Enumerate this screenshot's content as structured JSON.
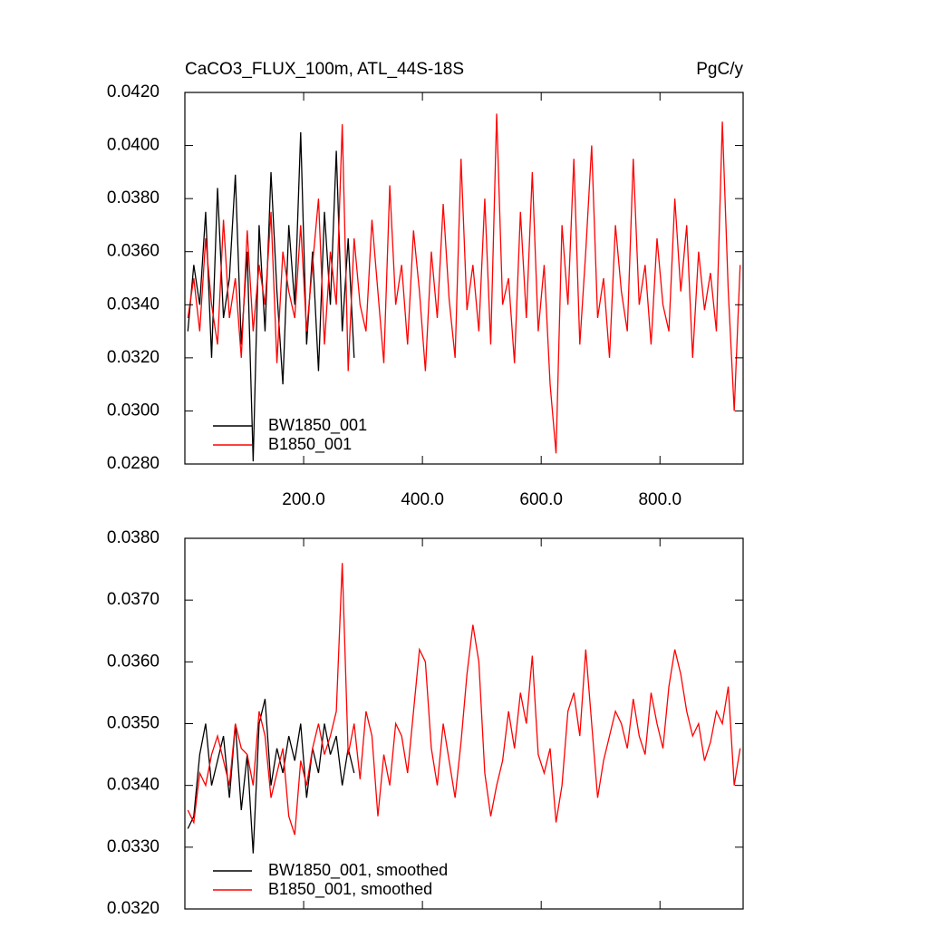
{
  "chart_data": [
    {
      "type": "line",
      "title": "CaCO3_FLUX_100m, ATL_44S-18S",
      "units": "PgC/y",
      "x": [
        5,
        15,
        25,
        35,
        45,
        55,
        65,
        75,
        85,
        95,
        105,
        115,
        125,
        135,
        145,
        155,
        165,
        175,
        185,
        195,
        205,
        215,
        225,
        235,
        245,
        255,
        265,
        275,
        285,
        295,
        305,
        315,
        325,
        335,
        345,
        355,
        365,
        375,
        385,
        395,
        405,
        415,
        425,
        435,
        445,
        455,
        465,
        475,
        485,
        495,
        505,
        515,
        525,
        535,
        545,
        555,
        565,
        575,
        585,
        595,
        605,
        615,
        625,
        635,
        645,
        655,
        665,
        675,
        685,
        695,
        705,
        715,
        725,
        735,
        745,
        755,
        765,
        775,
        785,
        795,
        805,
        815,
        825,
        835,
        845,
        855,
        865,
        875,
        885,
        895,
        905,
        915,
        925,
        935
      ],
      "series": [
        {
          "name": "BW1850_001",
          "color": "#000000",
          "values": [
            0.033,
            0.0355,
            0.034,
            0.0375,
            0.032,
            0.0384,
            0.0335,
            0.035,
            0.0389,
            0.0325,
            0.036,
            0.0281,
            0.037,
            0.033,
            0.039,
            0.0345,
            0.031,
            0.037,
            0.034,
            0.0405,
            0.0325,
            0.036,
            0.0315,
            0.0375,
            0.034,
            0.0398,
            0.033,
            0.0365,
            0.032,
            null,
            null,
            null,
            null,
            null,
            null,
            null,
            null,
            null,
            null,
            null,
            null,
            null,
            null,
            null,
            null,
            null,
            null,
            null,
            null,
            null,
            null,
            null,
            null,
            null,
            null,
            null,
            null,
            null,
            null,
            null,
            null,
            null,
            null,
            null,
            null,
            null,
            null,
            null,
            null,
            null,
            null,
            null,
            null,
            null,
            null,
            null,
            null,
            null,
            null,
            null,
            null,
            null,
            null,
            null,
            null,
            null,
            null,
            null,
            null,
            null,
            null,
            null,
            null,
            null
          ]
        },
        {
          "name": "B1850_001",
          "color": "#ff0000",
          "values": [
            0.0335,
            0.035,
            0.033,
            0.0365,
            0.034,
            0.0325,
            0.0372,
            0.0335,
            0.035,
            0.032,
            0.0368,
            0.033,
            0.0355,
            0.034,
            0.0375,
            0.0318,
            0.036,
            0.0345,
            0.0335,
            0.037,
            0.033,
            0.0355,
            0.038,
            0.0325,
            0.036,
            0.034,
            0.0408,
            0.0315,
            0.0365,
            0.034,
            0.033,
            0.0372,
            0.0345,
            0.0318,
            0.0385,
            0.034,
            0.0355,
            0.0325,
            0.0368,
            0.0345,
            0.0315,
            0.036,
            0.0335,
            0.0378,
            0.0342,
            0.032,
            0.0395,
            0.0338,
            0.0355,
            0.033,
            0.038,
            0.0325,
            0.0412,
            0.034,
            0.035,
            0.0318,
            0.0375,
            0.0335,
            0.039,
            0.033,
            0.0355,
            0.031,
            0.0284,
            0.037,
            0.034,
            0.0395,
            0.0325,
            0.036,
            0.04,
            0.0335,
            0.035,
            0.032,
            0.037,
            0.0345,
            0.033,
            0.0395,
            0.034,
            0.0355,
            0.0325,
            0.0365,
            0.034,
            0.033,
            0.038,
            0.0345,
            0.037,
            0.032,
            0.036,
            0.0338,
            0.0352,
            0.033,
            0.0409,
            0.0345,
            0.03,
            0.0355
          ]
        }
      ],
      "xlim": [
        0,
        940
      ],
      "ylim": [
        0.028,
        0.042
      ],
      "xticks": [
        {
          "value": 200,
          "label": "200.0"
        },
        {
          "value": 400,
          "label": "400.0"
        },
        {
          "value": 600,
          "label": "600.0"
        },
        {
          "value": 800,
          "label": "800.0"
        }
      ],
      "yticks": [
        {
          "value": 0.028,
          "label": "0.0280"
        },
        {
          "value": 0.03,
          "label": "0.0300"
        },
        {
          "value": 0.032,
          "label": "0.0320"
        },
        {
          "value": 0.034,
          "label": "0.0340"
        },
        {
          "value": 0.036,
          "label": "0.0360"
        },
        {
          "value": 0.038,
          "label": "0.0380"
        },
        {
          "value": 0.04,
          "label": "0.0400"
        },
        {
          "value": 0.042,
          "label": "0.0420"
        }
      ],
      "legend": "lower left"
    },
    {
      "type": "line",
      "x": [
        5,
        15,
        25,
        35,
        45,
        55,
        65,
        75,
        85,
        95,
        105,
        115,
        125,
        135,
        145,
        155,
        165,
        175,
        185,
        195,
        205,
        215,
        225,
        235,
        245,
        255,
        265,
        275,
        285,
        295,
        305,
        315,
        325,
        335,
        345,
        355,
        365,
        375,
        385,
        395,
        405,
        415,
        425,
        435,
        445,
        455,
        465,
        475,
        485,
        495,
        505,
        515,
        525,
        535,
        545,
        555,
        565,
        575,
        585,
        595,
        605,
        615,
        625,
        635,
        645,
        655,
        665,
        675,
        685,
        695,
        705,
        715,
        725,
        735,
        745,
        755,
        765,
        775,
        785,
        795,
        805,
        815,
        825,
        835,
        845,
        855,
        865,
        875,
        885,
        895,
        905,
        915,
        925,
        935
      ],
      "series": [
        {
          "name": "BW1850_001, smoothed",
          "color": "#000000",
          "values": [
            0.0333,
            0.0335,
            0.0345,
            0.035,
            0.034,
            0.0344,
            0.0348,
            0.0338,
            0.035,
            0.0336,
            0.0345,
            0.0329,
            0.035,
            0.0354,
            0.034,
            0.0346,
            0.0342,
            0.0348,
            0.0344,
            0.035,
            0.0338,
            0.0346,
            0.0342,
            0.035,
            0.0345,
            0.0348,
            0.034,
            0.0346,
            0.0342,
            null,
            null,
            null,
            null,
            null,
            null,
            null,
            null,
            null,
            null,
            null,
            null,
            null,
            null,
            null,
            null,
            null,
            null,
            null,
            null,
            null,
            null,
            null,
            null,
            null,
            null,
            null,
            null,
            null,
            null,
            null,
            null,
            null,
            null,
            null,
            null,
            null,
            null,
            null,
            null,
            null,
            null,
            null,
            null,
            null,
            null,
            null,
            null,
            null,
            null,
            null,
            null,
            null,
            null,
            null,
            null,
            null,
            null,
            null,
            null,
            null,
            null,
            null,
            null,
            null
          ]
        },
        {
          "name": "B1850_001, smoothed",
          "color": "#ff0000",
          "values": [
            0.0336,
            0.0334,
            0.0342,
            0.034,
            0.0345,
            0.0348,
            0.0344,
            0.034,
            0.035,
            0.0346,
            0.0345,
            0.034,
            0.0352,
            0.0348,
            0.0338,
            0.0342,
            0.0346,
            0.0335,
            0.0332,
            0.0344,
            0.034,
            0.0346,
            0.035,
            0.0345,
            0.0348,
            0.0352,
            0.0376,
            0.0345,
            0.035,
            0.0341,
            0.0352,
            0.0348,
            0.0335,
            0.0345,
            0.034,
            0.035,
            0.0348,
            0.0342,
            0.0352,
            0.0362,
            0.036,
            0.0346,
            0.034,
            0.035,
            0.0344,
            0.0338,
            0.0347,
            0.0358,
            0.0366,
            0.036,
            0.0342,
            0.0335,
            0.034,
            0.0344,
            0.0352,
            0.0346,
            0.0355,
            0.035,
            0.0361,
            0.0345,
            0.0342,
            0.0346,
            0.0334,
            0.034,
            0.0352,
            0.0355,
            0.0348,
            0.0362,
            0.035,
            0.0338,
            0.0344,
            0.0348,
            0.0352,
            0.035,
            0.0346,
            0.0354,
            0.0348,
            0.0345,
            0.0355,
            0.035,
            0.0346,
            0.0356,
            0.0362,
            0.0358,
            0.0352,
            0.0348,
            0.035,
            0.0344,
            0.0347,
            0.0352,
            0.035,
            0.0356,
            0.034,
            0.0346
          ]
        }
      ],
      "xlim": [
        0,
        940
      ],
      "ylim": [
        0.032,
        0.038
      ],
      "xticks": [
        200,
        400,
        600,
        800
      ],
      "yticks": [
        {
          "value": 0.032,
          "label": "0.0320"
        },
        {
          "value": 0.033,
          "label": "0.0330"
        },
        {
          "value": 0.034,
          "label": "0.0340"
        },
        {
          "value": 0.035,
          "label": "0.0350"
        },
        {
          "value": 0.036,
          "label": "0.0360"
        },
        {
          "value": 0.037,
          "label": "0.0370"
        },
        {
          "value": 0.038,
          "label": "0.0380"
        }
      ],
      "legend": "lower left"
    }
  ]
}
